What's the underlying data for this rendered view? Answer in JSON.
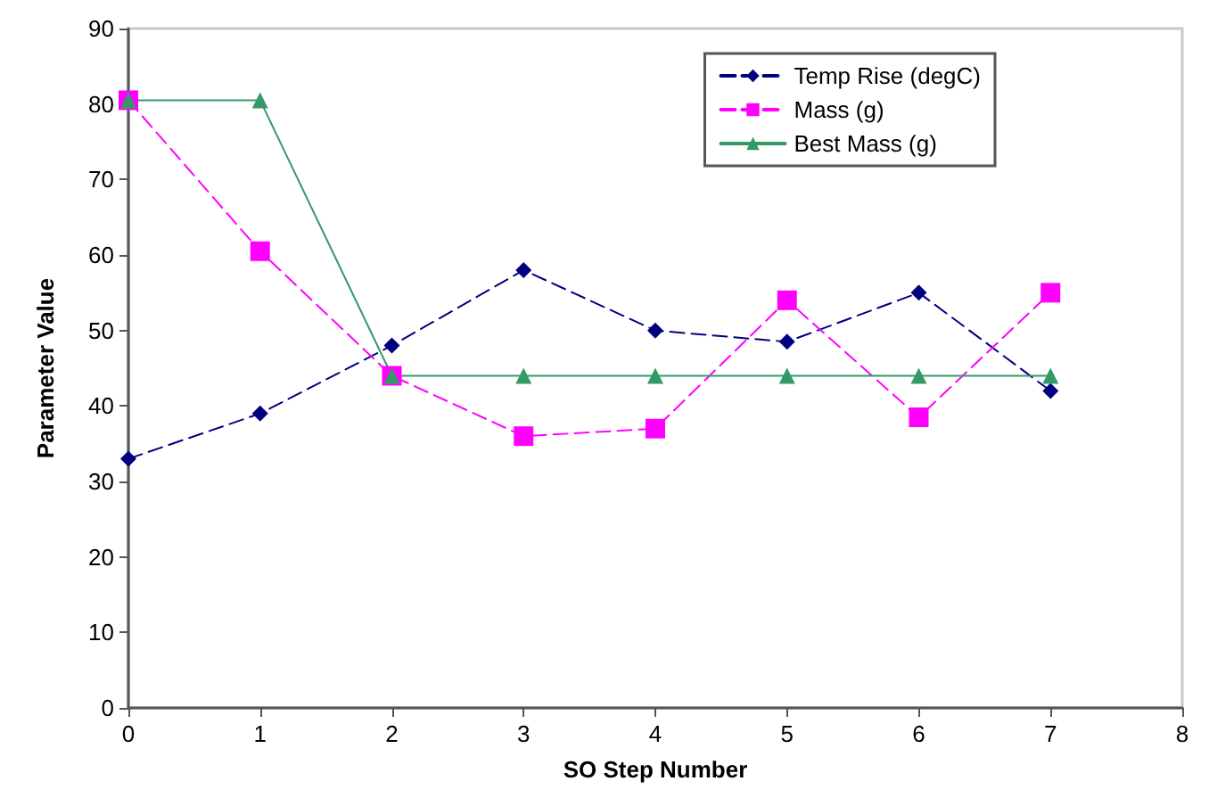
{
  "chart_data": {
    "type": "line",
    "xlabel": "SO Step Number",
    "ylabel": "Parameter Value",
    "x": [
      0,
      1,
      2,
      3,
      4,
      5,
      6,
      7
    ],
    "series": [
      {
        "name": "Temp Rise (degC)",
        "color": "#000080",
        "marker": "diamond",
        "line_style": "dashed",
        "values": [
          33,
          39,
          48,
          58,
          50,
          48.5,
          55,
          42
        ]
      },
      {
        "name": "Mass (g)",
        "color": "#ff00ff",
        "marker": "square",
        "line_style": "dashed",
        "values": [
          80.5,
          60.5,
          44,
          36,
          37,
          54,
          38.5,
          55
        ]
      },
      {
        "name": "Best Mass (g)",
        "color": "#339966",
        "marker": "triangle",
        "line_style": "solid",
        "values": [
          80.5,
          80.5,
          44,
          44,
          44,
          44,
          44,
          44
        ]
      }
    ],
    "xlim": [
      0,
      8
    ],
    "xticks": [
      0,
      1,
      2,
      3,
      4,
      5,
      6,
      7,
      8
    ],
    "ylim": [
      0,
      90
    ],
    "yticks": [
      0,
      10,
      20,
      30,
      40,
      50,
      60,
      70,
      80,
      90
    ],
    "grid": false,
    "legend": "top right"
  }
}
